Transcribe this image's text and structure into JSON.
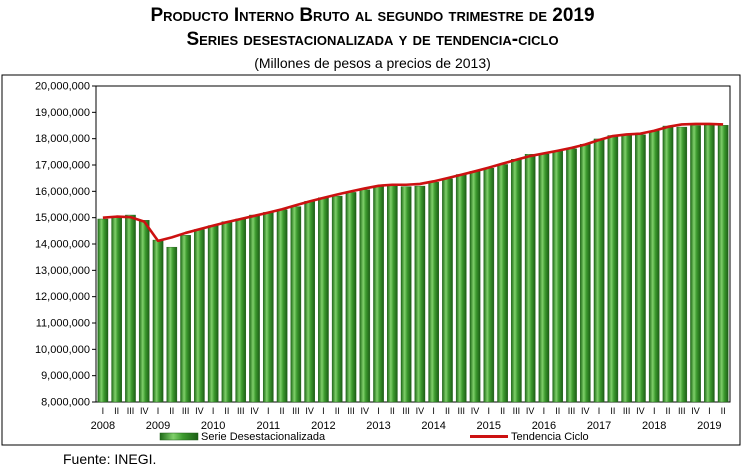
{
  "title_line1": "Producto Interno Bruto al segundo trimestre de 2019",
  "title_line2": "Series desestacionalizada y de tendencia-ciclo",
  "subtitle": "(Millones de pesos a precios de 2013)",
  "source": "Fuente: INEGI.",
  "chart_data": {
    "type": "bar",
    "ylim": [
      8000000,
      20000000
    ],
    "y_ticks": [
      8000000,
      9000000,
      10000000,
      11000000,
      12000000,
      13000000,
      14000000,
      15000000,
      16000000,
      17000000,
      18000000,
      19000000,
      20000000
    ],
    "y_tick_labels": [
      "8,000,000",
      "9,000,000",
      "10,000,000",
      "11,000,000",
      "12,000,000",
      "13,000,000",
      "14,000,000",
      "15,000,000",
      "16,000,000",
      "17,000,000",
      "18,000,000",
      "19,000,000",
      "20,000,000"
    ],
    "quarter_labels": [
      "I",
      "II",
      "III",
      "IV"
    ],
    "years": [
      "2008",
      "2009",
      "2010",
      "2011",
      "2012",
      "2013",
      "2014",
      "2015",
      "2016",
      "2017",
      "2018",
      "2019"
    ],
    "categories": [
      "2008 I",
      "2008 II",
      "2008 III",
      "2008 IV",
      "2009 I",
      "2009 II",
      "2009 III",
      "2009 IV",
      "2010 I",
      "2010 II",
      "2010 III",
      "2010 IV",
      "2011 I",
      "2011 II",
      "2011 III",
      "2011 IV",
      "2012 I",
      "2012 II",
      "2012 III",
      "2012 IV",
      "2013 I",
      "2013 II",
      "2013 III",
      "2013 IV",
      "2014 I",
      "2014 II",
      "2014 III",
      "2014 IV",
      "2015 I",
      "2015 II",
      "2015 III",
      "2015 IV",
      "2016 I",
      "2016 II",
      "2016 III",
      "2016 IV",
      "2017 I",
      "2017 II",
      "2017 III",
      "2017 IV",
      "2018 I",
      "2018 II",
      "2018 III",
      "2018 IV",
      "2019 I",
      "2019 II"
    ],
    "series": [
      {
        "name": "Serie Desestacionalizada",
        "kind": "bar",
        "color": "#3d9b2f",
        "values": [
          14950000,
          15050000,
          15100000,
          14900000,
          14150000,
          13880000,
          14330000,
          14550000,
          14700000,
          14850000,
          14950000,
          15100000,
          15200000,
          15300000,
          15420000,
          15620000,
          15760000,
          15820000,
          15960000,
          16060000,
          16200000,
          16210000,
          16180000,
          16200000,
          16350000,
          16480000,
          16640000,
          16760000,
          16880000,
          17020000,
          17220000,
          17410000,
          17420000,
          17520000,
          17620000,
          17790000,
          17990000,
          18120000,
          18170000,
          18150000,
          18300000,
          18480000,
          18440000,
          18500000,
          18520000,
          18510000
        ]
      },
      {
        "name": "Tendencia Ciclo",
        "kind": "line",
        "color": "#cc1111",
        "values": [
          15000000,
          15040000,
          15020000,
          14850000,
          14120000,
          14250000,
          14420000,
          14560000,
          14700000,
          14830000,
          14950000,
          15070000,
          15190000,
          15320000,
          15470000,
          15620000,
          15750000,
          15880000,
          16000000,
          16110000,
          16210000,
          16250000,
          16250000,
          16280000,
          16380000,
          16500000,
          16630000,
          16760000,
          16900000,
          17050000,
          17200000,
          17340000,
          17440000,
          17540000,
          17650000,
          17780000,
          17950000,
          18100000,
          18160000,
          18190000,
          18300000,
          18450000,
          18540000,
          18560000,
          18560000,
          18540000
        ]
      }
    ],
    "legend": [
      "Serie Desestacionalizada",
      "Tendencia Ciclo"
    ],
    "legend_position": "bottom",
    "grid": false
  }
}
